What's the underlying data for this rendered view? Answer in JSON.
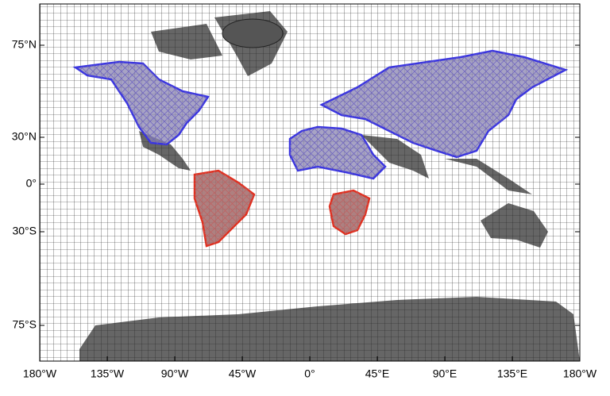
{
  "map": {
    "x_axis_labels": [
      "180°W",
      "135°W",
      "90°W",
      "45°W",
      "0°",
      "45°E",
      "90°E",
      "135°E",
      "180°W"
    ],
    "y_axis_labels": [
      "75°N",
      "30°N",
      "0°",
      "30°S",
      "75°S"
    ]
  }
}
